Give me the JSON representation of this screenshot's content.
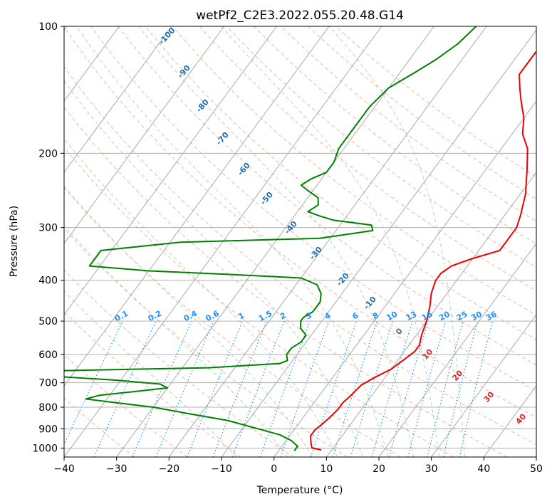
{
  "chart_data": {
    "type": "line",
    "subtype": "skew-T log-P",
    "title": "wetPf2_C2E3.2022.055.20.48.G14",
    "xlabel": "Temperature (°C)",
    "ylabel": "Pressure (hPa)",
    "xlim": [
      -40,
      50
    ],
    "ylim_hpa": [
      1050,
      100
    ],
    "x_ticks": [
      -40,
      -30,
      -20,
      -10,
      0,
      10,
      20,
      30,
      40,
      50
    ],
    "x_tick_labels": [
      "−40",
      "−30",
      "−20",
      "−10",
      "0",
      "10",
      "20",
      "30",
      "40",
      "50"
    ],
    "y_ticks": [
      100,
      200,
      300,
      400,
      500,
      600,
      700,
      800,
      900,
      1000
    ],
    "y_tick_labels": [
      "100",
      "200",
      "300",
      "400",
      "500",
      "600",
      "700",
      "800",
      "900",
      "1000"
    ],
    "grid": true,
    "series": [
      {
        "name": "Temperature",
        "color": "#ee0000",
        "points": [
          [
            1010,
            8
          ],
          [
            1000,
            6
          ],
          [
            970,
            5
          ],
          [
            935,
            4
          ],
          [
            905,
            4
          ],
          [
            880,
            4.5
          ],
          [
            850,
            5
          ],
          [
            810,
            5.5
          ],
          [
            780,
            5.5
          ],
          [
            750,
            6
          ],
          [
            710,
            6.5
          ],
          [
            680,
            8
          ],
          [
            650,
            10
          ],
          [
            620,
            11
          ],
          [
            590,
            12
          ],
          [
            570,
            12
          ],
          [
            540,
            11
          ],
          [
            500,
            10
          ],
          [
            460,
            8.5
          ],
          [
            430,
            7
          ],
          [
            400,
            6
          ],
          [
            385,
            6
          ],
          [
            370,
            7
          ],
          [
            355,
            10
          ],
          [
            340,
            14
          ],
          [
            320,
            14
          ],
          [
            300,
            14
          ],
          [
            280,
            13
          ],
          [
            250,
            11
          ],
          [
            220,
            8
          ],
          [
            195,
            5
          ],
          [
            180,
            2
          ],
          [
            165,
            0
          ],
          [
            150,
            -3
          ],
          [
            140,
            -5
          ],
          [
            130,
            -7
          ],
          [
            120,
            -7
          ],
          [
            115,
            -7
          ],
          [
            108,
            -6
          ],
          [
            100,
            -5
          ]
        ]
      },
      {
        "name": "Dewpoint",
        "color": "#008000",
        "points": [
          [
            1015,
            3
          ],
          [
            990,
            3
          ],
          [
            960,
            1
          ],
          [
            930,
            -2
          ],
          [
            900,
            -7
          ],
          [
            860,
            -14
          ],
          [
            830,
            -22
          ],
          [
            800,
            -30
          ],
          [
            780,
            -38
          ],
          [
            765,
            -44
          ],
          [
            750,
            -42
          ],
          [
            735,
            -36
          ],
          [
            720,
            -30
          ],
          [
            705,
            -32
          ],
          [
            690,
            -41
          ],
          [
            676,
            -53
          ],
          [
            665,
            -60
          ],
          [
            655,
            -52
          ],
          [
            645,
            -25
          ],
          [
            630,
            -12
          ],
          [
            620,
            -11
          ],
          [
            600,
            -12
          ],
          [
            580,
            -12
          ],
          [
            560,
            -11
          ],
          [
            540,
            -11
          ],
          [
            520,
            -13
          ],
          [
            500,
            -14
          ],
          [
            490,
            -14
          ],
          [
            475,
            -13
          ],
          [
            450,
            -13
          ],
          [
            430,
            -14
          ],
          [
            410,
            -16
          ],
          [
            395,
            -20
          ],
          [
            388,
            -33
          ],
          [
            380,
            -50
          ],
          [
            370,
            -62
          ],
          [
            340,
            -62
          ],
          [
            325,
            -48
          ],
          [
            318,
            -22
          ],
          [
            305,
            -13
          ],
          [
            296,
            -14
          ],
          [
            288,
            -22
          ],
          [
            282,
            -25
          ],
          [
            275,
            -28
          ],
          [
            265,
            -27
          ],
          [
            255,
            -28
          ],
          [
            245,
            -31
          ],
          [
            238,
            -33
          ],
          [
            230,
            -32
          ],
          [
            222,
            -30
          ],
          [
            210,
            -30
          ],
          [
            195,
            -31
          ],
          [
            185,
            -31
          ],
          [
            170,
            -31
          ],
          [
            155,
            -31
          ],
          [
            140,
            -30
          ],
          [
            128,
            -27
          ],
          [
            120,
            -25
          ],
          [
            110,
            -23
          ],
          [
            100,
            -22
          ]
        ]
      }
    ],
    "background_lines": {
      "dry_adiabats": {
        "color": "#e8a080",
        "values_c": [
          -30,
          -20,
          -10,
          0,
          10,
          20,
          30,
          40,
          50,
          60,
          70,
          80,
          90,
          100,
          110,
          120,
          130,
          140,
          150,
          160
        ]
      },
      "moist_adiabats": {
        "color": "#a0d0a0",
        "values_c": [
          -10,
          0,
          5,
          10,
          15,
          20,
          25,
          30,
          35
        ]
      },
      "mixing_ratio_lines_gkg": [
        0.1,
        0.2,
        0.4,
        0.6,
        1,
        1.5,
        2,
        3,
        4,
        6,
        8,
        10,
        13,
        16,
        20,
        25,
        30,
        36
      ],
      "mixing_ratio_labels": [
        "0.1",
        "0.2",
        "0.4",
        "0.6",
        "1",
        "1.5",
        "2",
        "3",
        "4",
        "6",
        "8",
        "10",
        "13",
        "16",
        "20",
        "25",
        "30",
        "36"
      ],
      "absolute_labels": [
        "-100",
        "-90",
        "-80",
        "-70",
        "-60",
        "-50",
        "-40",
        "-30",
        "-20",
        "-10"
      ],
      "zero_label": "0",
      "red_labels": [
        "10",
        "20",
        "30",
        "40"
      ]
    }
  }
}
